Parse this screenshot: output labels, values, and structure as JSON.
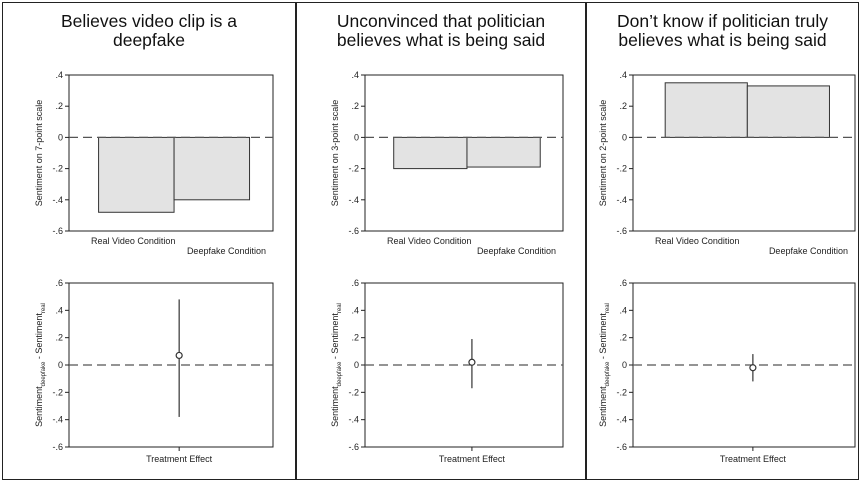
{
  "chart_data": [
    {
      "panel": 1,
      "title_lines": [
        "Believes video clip is a",
        "deepfake"
      ],
      "top_chart": {
        "type": "bar",
        "categories": [
          "Real Video Condition",
          "Deepfake Condition"
        ],
        "values": [
          -0.48,
          -0.4
        ],
        "ylabel": "Sentiment on 7-point scale",
        "ylim": [
          -0.6,
          0.4
        ],
        "yticks": [
          ".4",
          ".2",
          "0",
          "-.2",
          "-.4",
          "-.6"
        ],
        "reference_line": 0
      },
      "bottom_chart": {
        "type": "scatter",
        "categories": [
          "Treatment Effect"
        ],
        "point": 0.07,
        "ci": [
          -0.38,
          0.48
        ],
        "ylabel": "Sentiment(deepfake) - Sentiment(real)",
        "ylim": [
          -0.6,
          0.6
        ],
        "yticks": [
          ".6",
          ".4",
          ".2",
          "0",
          "-.2",
          "-.4",
          "-.6"
        ],
        "reference_line": 0
      }
    },
    {
      "panel": 2,
      "title_lines": [
        "Unconvinced that politician",
        "believes what is being said"
      ],
      "top_chart": {
        "type": "bar",
        "categories": [
          "Real Video Condition",
          "Deepfake Condition"
        ],
        "values": [
          -0.2,
          -0.19
        ],
        "ylabel": "Sentiment on 3-point scale",
        "ylim": [
          -0.6,
          0.4
        ],
        "yticks": [
          ".4",
          ".2",
          "0",
          "-.2",
          "-.4",
          "-.6"
        ],
        "reference_line": 0
      },
      "bottom_chart": {
        "type": "scatter",
        "categories": [
          "Treatment Effect"
        ],
        "point": 0.02,
        "ci": [
          -0.17,
          0.19
        ],
        "ylabel": "Sentiment(deepfake) - Sentiment(real)",
        "ylim": [
          -0.6,
          0.6
        ],
        "yticks": [
          ".6",
          ".4",
          ".2",
          "0",
          "-.2",
          "-.4",
          "-.6"
        ],
        "reference_line": 0
      }
    },
    {
      "panel": 3,
      "title_lines": [
        "Don’t know if politician truly",
        "believes what is being said"
      ],
      "top_chart": {
        "type": "bar",
        "categories": [
          "Real Video Condition",
          "Deepfake Condition"
        ],
        "values": [
          0.35,
          0.33
        ],
        "ylabel": "Sentiment on 2-point scale",
        "ylim": [
          -0.6,
          0.4
        ],
        "yticks": [
          ".4",
          ".2",
          "0",
          "-.2",
          "-.4",
          "-.6"
        ],
        "reference_line": 0
      },
      "bottom_chart": {
        "type": "scatter",
        "categories": [
          "Treatment Effect"
        ],
        "point": -0.02,
        "ci": [
          -0.12,
          0.08
        ],
        "ylabel": "Sentiment(deepfake) - Sentiment(real)",
        "ylim": [
          -0.6,
          0.6
        ],
        "yticks": [
          ".6",
          ".4",
          ".2",
          "0",
          "-.2",
          "-.4",
          "-.6"
        ],
        "reference_line": 0
      }
    }
  ],
  "colors": {
    "bar_fill": "#e3e3e3",
    "bar_stroke": "#333333",
    "axis": "#222222",
    "reference_line": "#555555",
    "marker": "#333333"
  }
}
